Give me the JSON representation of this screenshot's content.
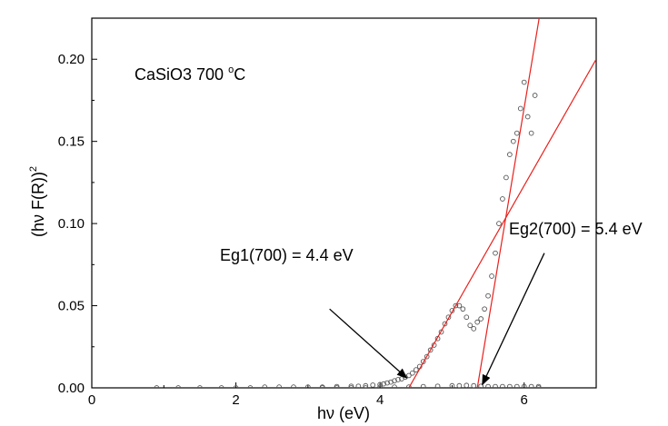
{
  "chart_data": {
    "type": "scatter",
    "title": "",
    "sample_label": {
      "text": "CaSiO3 700 ",
      "degree": "o",
      "unit": "C"
    },
    "xlabel": "hν (eV)",
    "ylabel": {
      "base": "(hν F(R))",
      "sup": "2"
    },
    "xlim": [
      0,
      7
    ],
    "ylim": [
      0,
      0.225
    ],
    "xticks": [
      0,
      2,
      4,
      6
    ],
    "yticks": [
      0.0,
      0.05,
      0.1,
      0.15,
      0.2
    ],
    "xticklabels": [
      "0",
      "2",
      "4",
      "6"
    ],
    "yticklabels": [
      "0.00",
      "0.05",
      "0.10",
      "0.15",
      "0.20"
    ],
    "grid": false,
    "legend": "none",
    "marker_color": "#555555",
    "fit_line_color": "#e8201c",
    "series": [
      {
        "marker": "open-circle",
        "x": [
          0.9,
          1.2,
          1.5,
          1.8,
          2.0,
          2.2,
          2.4,
          2.6,
          2.8,
          3.0,
          3.2,
          3.4,
          3.6,
          3.7,
          3.8,
          3.9,
          4.0,
          4.05,
          4.1,
          4.15,
          4.2,
          4.25,
          4.3,
          4.35,
          4.4,
          4.45,
          4.5,
          4.55,
          4.6,
          4.65,
          4.7,
          4.75,
          4.8,
          4.85,
          4.9,
          4.95,
          5.0,
          5.05,
          5.1,
          5.15,
          5.2,
          5.25,
          5.3,
          5.35,
          5.4,
          5.45,
          5.5,
          5.55,
          5.6,
          5.65,
          5.7,
          5.75,
          5.8,
          5.85,
          5.9,
          5.95,
          6.0,
          6.05,
          6.1,
          6.15,
          6.2
        ],
        "y": [
          0.0,
          0.0,
          0.0,
          0.0,
          0.0,
          0.0,
          0.0005,
          0.0005,
          0.0005,
          0.0005,
          0.0005,
          0.0008,
          0.001,
          0.001,
          0.0013,
          0.0017,
          0.002,
          0.0024,
          0.003,
          0.0035,
          0.0043,
          0.005,
          0.0055,
          0.0065,
          0.0075,
          0.009,
          0.011,
          0.013,
          0.016,
          0.019,
          0.023,
          0.026,
          0.03,
          0.034,
          0.039,
          0.043,
          0.047,
          0.05,
          0.05,
          0.048,
          0.043,
          0.038,
          0.036,
          0.04,
          0.042,
          0.048,
          0.056,
          0.068,
          0.082,
          0.1,
          0.115,
          0.128,
          0.142,
          0.15,
          0.155,
          0.17,
          0.186,
          0.165,
          0.155,
          0.178,
          0.0
        ]
      },
      {
        "marker": "open-circle",
        "x": [
          3.2,
          3.4,
          3.6,
          3.8,
          4.0,
          4.2,
          4.4,
          4.6,
          4.8,
          5.0,
          5.1,
          5.2,
          5.3,
          5.4,
          5.5,
          5.6,
          5.7,
          5.8,
          5.9,
          6.0,
          6.1,
          6.2
        ],
        "y": [
          0.0,
          0.0,
          0.0,
          0.0,
          0.0005,
          0.0005,
          0.0005,
          0.0008,
          0.001,
          0.0013,
          0.0013,
          0.0015,
          0.0013,
          0.001,
          0.0008,
          0.0008,
          0.0008,
          0.0008,
          0.0008,
          0.0008,
          0.0008,
          0.0008
        ]
      }
    ],
    "fit_lines": [
      {
        "x": [
          4.4,
          7.0
        ],
        "y": [
          0.0,
          0.2
        ]
      },
      {
        "x": [
          5.35,
          6.22
        ],
        "y": [
          0.0,
          0.228
        ]
      }
    ],
    "annotations": [
      {
        "text": "Eg1(700) = 4.4 eV",
        "from": [
          3.3,
          0.048
        ],
        "to": [
          4.37,
          0.006
        ]
      },
      {
        "text": "Eg2(700) = 5.4 eV",
        "from": [
          6.28,
          0.082
        ],
        "to": [
          5.42,
          0.002
        ]
      }
    ]
  }
}
